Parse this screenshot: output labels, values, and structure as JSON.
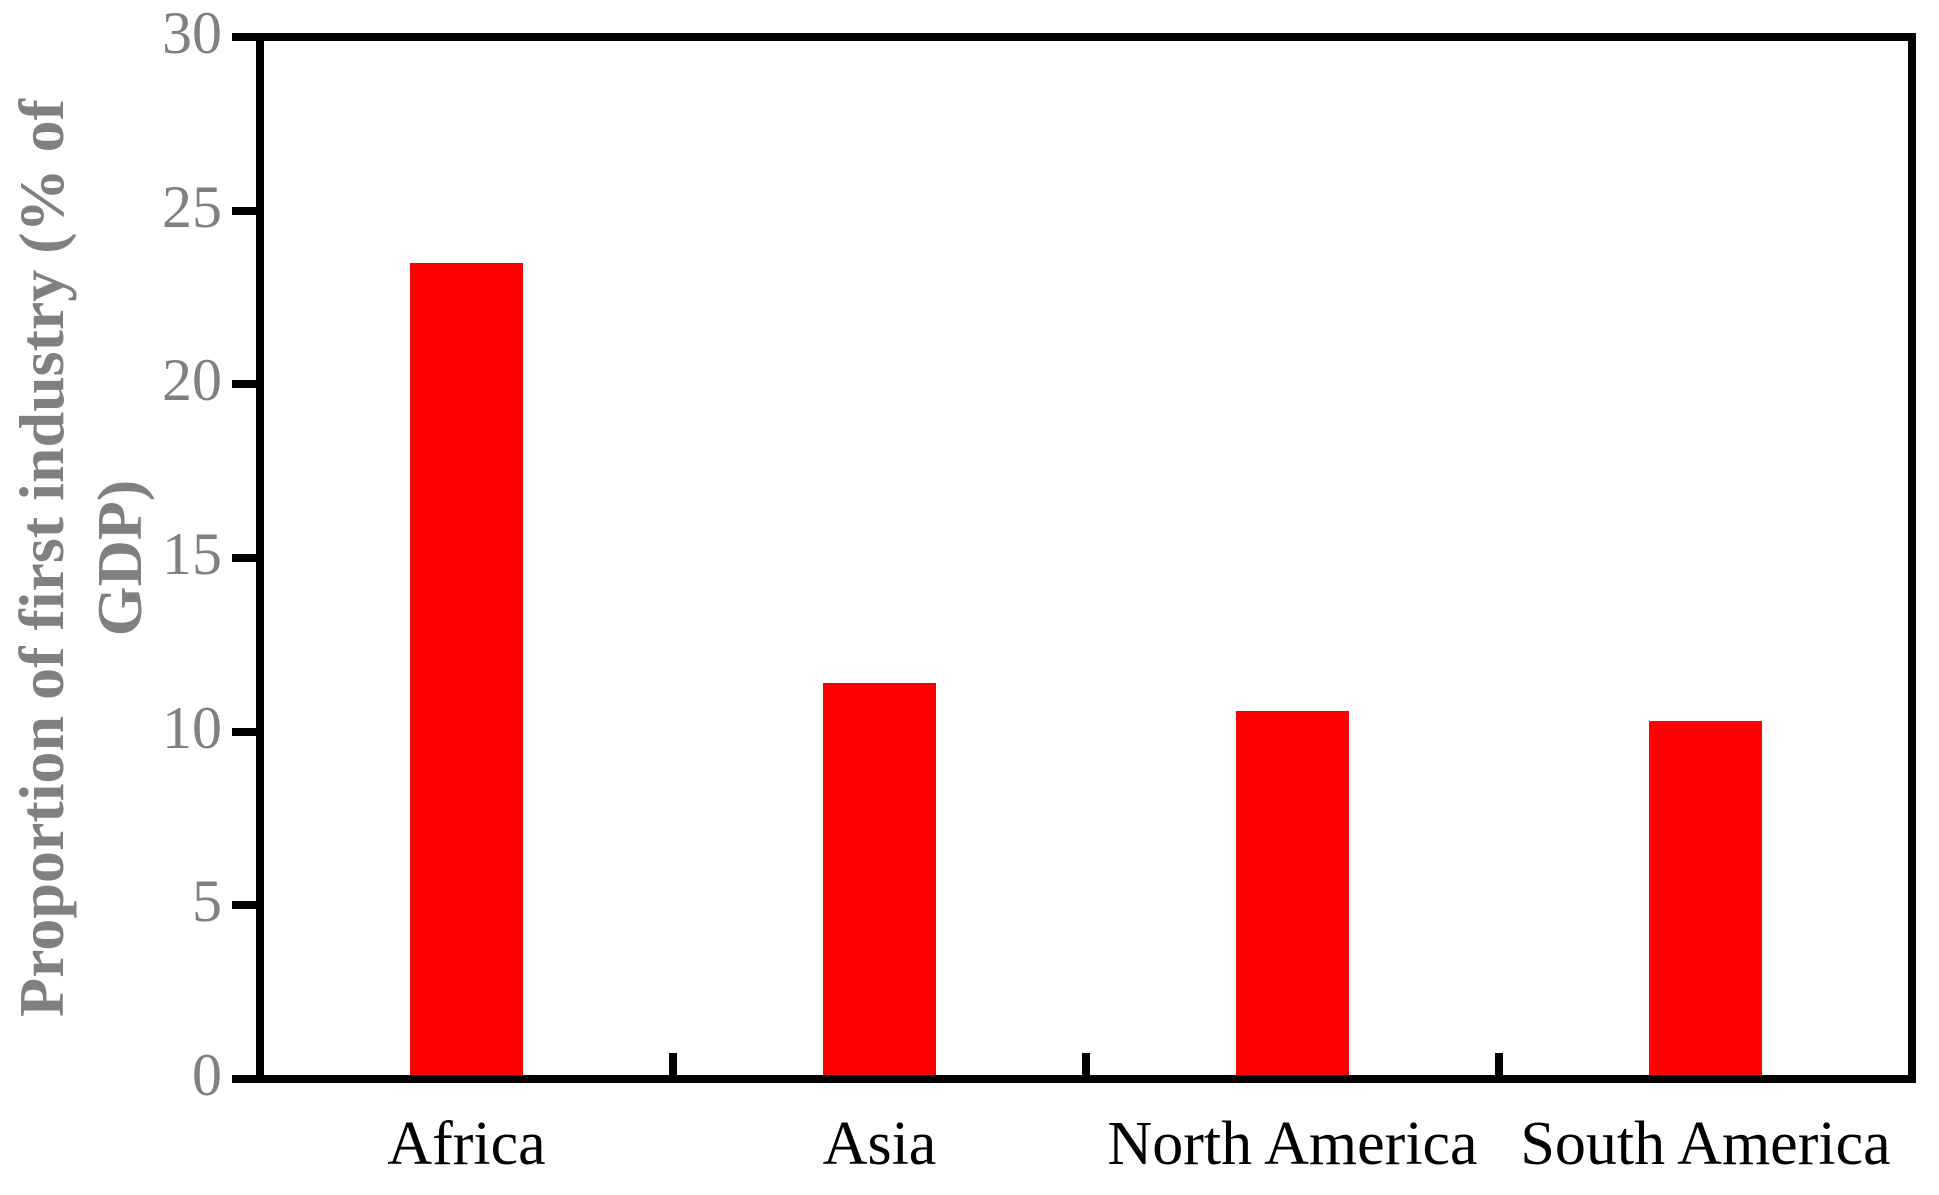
{
  "figure": {
    "background_color": "#ffffff"
  },
  "chart_data": {
    "type": "bar",
    "title": "",
    "xlabel": "",
    "ylabel": "Proportion of first industry (% of GDP)",
    "ylabel_lines": [
      "Proportion of first industry (% of",
      "GDP)"
    ],
    "categories": [
      "Africa",
      "Asia",
      "North America",
      "South America"
    ],
    "values": [
      23.5,
      11.4,
      10.6,
      10.3
    ],
    "yticks": [
      0,
      5,
      10,
      15,
      20,
      25,
      30
    ],
    "ylim": [
      0,
      30
    ],
    "grid": false,
    "legend": "none",
    "bar_color": "#ff0000",
    "axis_color": "#000000",
    "ytick_label_color": "#808080",
    "ylabel_color": "#808080",
    "xtick_label_color": "#000000"
  }
}
